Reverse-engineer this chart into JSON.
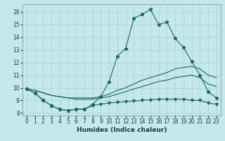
{
  "xlabel": "Humidex (Indice chaleur)",
  "background_color": "#c5e8e8",
  "grid_color": "#b0d4d4",
  "line_color": "#1a6b5a",
  "xlim": [
    -0.5,
    23.5
  ],
  "ylim": [
    7.8,
    16.6
  ],
  "xticks": [
    0,
    1,
    2,
    3,
    4,
    5,
    6,
    7,
    8,
    9,
    10,
    11,
    12,
    13,
    14,
    15,
    16,
    17,
    18,
    19,
    20,
    21,
    22,
    23
  ],
  "yticks": [
    8,
    9,
    10,
    11,
    12,
    13,
    14,
    15,
    16
  ],
  "series1": [
    9.9,
    9.6,
    9.0,
    8.6,
    8.3,
    8.2,
    8.3,
    8.3,
    8.7,
    9.3,
    10.5,
    12.5,
    13.1,
    15.5,
    15.8,
    16.2,
    15.0,
    15.2,
    13.9,
    13.2,
    12.1,
    11.0,
    9.7,
    9.2
  ],
  "series2": [
    9.9,
    9.8,
    9.6,
    9.4,
    9.3,
    9.2,
    9.2,
    9.2,
    9.2,
    9.3,
    9.5,
    9.8,
    10.0,
    10.3,
    10.6,
    10.8,
    11.0,
    11.2,
    11.5,
    11.6,
    11.7,
    11.5,
    11.0,
    10.8
  ],
  "series3": [
    9.9,
    9.8,
    9.6,
    9.4,
    9.3,
    9.2,
    9.1,
    9.1,
    9.1,
    9.2,
    9.3,
    9.5,
    9.7,
    9.9,
    10.1,
    10.3,
    10.5,
    10.6,
    10.8,
    10.9,
    11.0,
    10.8,
    10.3,
    10.1
  ],
  "series4": [
    9.9,
    9.6,
    9.0,
    8.6,
    8.3,
    8.2,
    8.3,
    8.3,
    8.6,
    8.7,
    8.8,
    8.85,
    8.9,
    8.95,
    9.0,
    9.05,
    9.1,
    9.1,
    9.1,
    9.1,
    9.0,
    9.0,
    8.8,
    8.7
  ]
}
